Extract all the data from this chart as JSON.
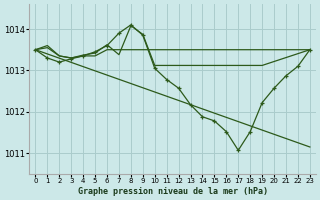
{
  "background_color": "#cce8e8",
  "grid_color": "#aacccc",
  "line_color": "#2d5a1b",
  "marker_color": "#2d5a1b",
  "title": "Graphe pression niveau de la mer (hPa)",
  "xlim": [
    -0.5,
    23.5
  ],
  "ylim": [
    1010.5,
    1014.6
  ],
  "yticks": [
    1011,
    1012,
    1013,
    1014
  ],
  "xticks": [
    0,
    1,
    2,
    3,
    4,
    5,
    6,
    7,
    8,
    9,
    10,
    11,
    12,
    13,
    14,
    15,
    16,
    17,
    18,
    19,
    20,
    21,
    22,
    23
  ],
  "series": [
    {
      "x": [
        0,
        1,
        2,
        3,
        4,
        5,
        6,
        7,
        8,
        9,
        10,
        14,
        19,
        23
      ],
      "y": [
        1013.5,
        1013.55,
        1013.35,
        1013.3,
        1013.35,
        1013.35,
        1013.5,
        1013.5,
        1013.5,
        1013.5,
        1013.5,
        1013.5,
        1013.5,
        1013.5
      ],
      "markers": false
    },
    {
      "x": [
        0,
        1,
        2,
        3,
        4,
        5,
        6,
        7,
        8,
        9,
        10,
        11,
        12,
        13,
        14,
        15,
        16,
        17,
        18,
        19,
        20,
        21,
        22,
        23
      ],
      "y": [
        1013.5,
        1013.3,
        1013.2,
        1013.28,
        1013.35,
        1013.45,
        1013.6,
        1013.9,
        1014.1,
        1013.85,
        1013.05,
        1012.8,
        1012.57,
        1012.17,
        1011.88,
        1011.78,
        1011.52,
        1011.07,
        1011.52,
        1012.22,
        1012.57,
        1012.87,
        1013.1,
        1013.5
      ],
      "markers": true
    },
    {
      "x": [
        0,
        1,
        2,
        3,
        4,
        5,
        6,
        7,
        8,
        9,
        10,
        11,
        12,
        13,
        14
      ],
      "y": [
        1013.5,
        1013.6,
        1013.35,
        1013.3,
        1013.37,
        1013.42,
        1013.62,
        1013.38,
        1014.08,
        1013.87,
        1013.12,
        1013.12,
        1013.12,
        1013.12,
        1013.12
      ],
      "markers": false
    },
    {
      "x": [
        0,
        23
      ],
      "y": [
        1013.5,
        1011.5
      ],
      "markers": false
    },
    {
      "x": [
        0,
        1
      ],
      "y": [
        1013.5,
        1013.6
      ],
      "markers": false
    }
  ]
}
